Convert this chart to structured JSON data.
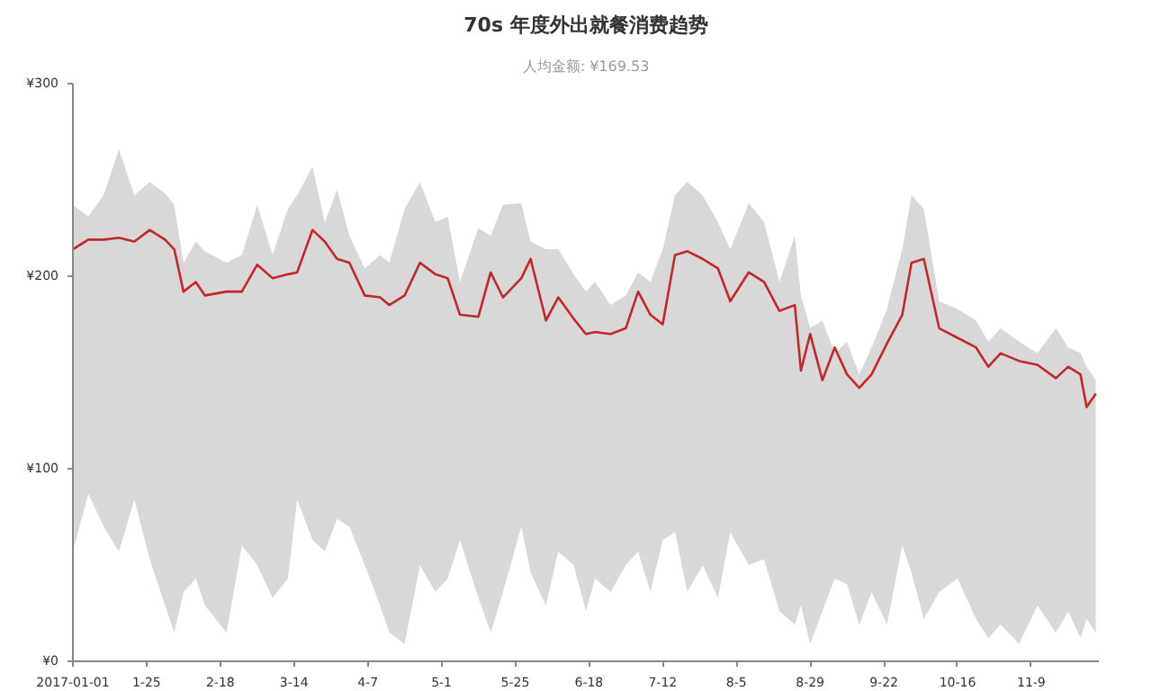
{
  "chart_data": {
    "type": "line",
    "title": "70s 年度外出就餐消费趋势",
    "subtitle": "人均金额: ¥169.53",
    "x": [
      "2017-01-01",
      "2017-01-06",
      "2017-01-11",
      "2017-01-16",
      "2017-01-21",
      "2017-01-26",
      "2017-01-31",
      "2017-02-03",
      "2017-02-06",
      "2017-02-10",
      "2017-02-13",
      "2017-02-20",
      "2017-02-25",
      "2017-03-02",
      "2017-03-07",
      "2017-03-12",
      "2017-03-15",
      "2017-03-20",
      "2017-03-24",
      "2017-03-28",
      "2017-04-01",
      "2017-04-06",
      "2017-04-11",
      "2017-04-14",
      "2017-04-19",
      "2017-04-24",
      "2017-04-29",
      "2017-05-03",
      "2017-05-07",
      "2017-05-13",
      "2017-05-17",
      "2017-05-21",
      "2017-05-27",
      "2017-05-30",
      "2017-06-04",
      "2017-06-08",
      "2017-06-13",
      "2017-06-17",
      "2017-06-20",
      "2017-06-25",
      "2017-06-30",
      "2017-07-04",
      "2017-07-08",
      "2017-07-12",
      "2017-07-16",
      "2017-07-20",
      "2017-07-25",
      "2017-07-30",
      "2017-08-03",
      "2017-08-09",
      "2017-08-14",
      "2017-08-19",
      "2017-08-24",
      "2017-08-26",
      "2017-08-29",
      "2017-09-02",
      "2017-09-06",
      "2017-09-10",
      "2017-09-14",
      "2017-09-18",
      "2017-09-23",
      "2017-09-28",
      "2017-10-01",
      "2017-10-05",
      "2017-10-10",
      "2017-10-16",
      "2017-10-22",
      "2017-10-26",
      "2017-10-30",
      "2017-11-05",
      "2017-11-11",
      "2017-11-17",
      "2017-11-21",
      "2017-11-25",
      "2017-11-27",
      "2017-11-30"
    ],
    "series": [
      {
        "color": "#c0282d",
        "values": [
          214,
          219,
          219,
          220,
          218,
          224,
          219,
          214,
          192,
          197,
          190,
          192,
          192,
          206,
          199,
          201,
          202,
          224,
          218,
          209,
          207,
          190,
          189,
          185,
          190,
          207,
          201,
          199,
          180,
          179,
          202,
          189,
          199,
          209,
          177,
          189,
          178,
          170,
          171,
          170,
          173,
          192,
          180,
          175,
          211,
          213,
          209,
          204,
          187,
          202,
          197,
          182,
          185,
          151,
          170,
          146,
          163,
          149,
          142,
          149,
          165,
          180,
          207,
          209,
          173,
          168,
          163,
          153,
          160,
          156,
          154,
          147,
          153,
          149,
          132,
          139
        ],
        "upper": [
          237,
          231,
          242,
          266,
          242,
          249,
          243,
          237,
          207,
          218,
          213,
          207,
          211,
          237,
          211,
          235,
          242,
          257,
          228,
          245,
          221,
          204,
          211,
          207,
          235,
          249,
          228,
          231,
          197,
          225,
          221,
          237,
          238,
          218,
          214,
          214,
          201,
          192,
          197,
          185,
          190,
          202,
          197,
          214,
          242,
          249,
          242,
          228,
          214,
          238,
          228,
          197,
          221,
          190,
          173,
          177,
          160,
          166,
          149,
          163,
          183,
          214,
          242,
          235,
          187,
          183,
          177,
          166,
          173,
          166,
          160,
          173,
          163,
          160,
          153,
          146
        ],
        "lower": [
          57,
          87,
          70,
          57,
          84,
          53,
          29,
          15,
          36,
          43,
          29,
          15,
          60,
          50,
          33,
          43,
          84,
          63,
          57,
          74,
          70,
          50,
          29,
          15,
          9,
          50,
          36,
          43,
          63,
          33,
          15,
          36,
          70,
          46,
          29,
          57,
          50,
          26,
          43,
          36,
          50,
          57,
          36,
          63,
          67,
          36,
          50,
          33,
          67,
          50,
          53,
          26,
          19,
          29,
          9,
          26,
          43,
          40,
          19,
          36,
          19,
          60,
          46,
          22,
          36,
          43,
          22,
          12,
          19,
          9,
          29,
          15,
          26,
          12,
          22,
          15
        ]
      }
    ],
    "xlim": [
      "2017-01-01",
      "2017-12-01"
    ],
    "xticks": [
      {
        "value": "2017-01-01",
        "label": "2017-01-01"
      },
      {
        "value": "2017-01-25",
        "label": "1-25"
      },
      {
        "value": "2017-02-18",
        "label": "2-18"
      },
      {
        "value": "2017-03-14",
        "label": "3-14"
      },
      {
        "value": "2017-04-07",
        "label": "4-7"
      },
      {
        "value": "2017-05-01",
        "label": "5-1"
      },
      {
        "value": "2017-05-25",
        "label": "5-25"
      },
      {
        "value": "2017-06-18",
        "label": "6-18"
      },
      {
        "value": "2017-07-12",
        "label": "7-12"
      },
      {
        "value": "2017-08-05",
        "label": "8-5"
      },
      {
        "value": "2017-08-29",
        "label": "8-29"
      },
      {
        "value": "2017-09-22",
        "label": "9-22"
      },
      {
        "value": "2017-10-16",
        "label": "10-16"
      },
      {
        "value": "2017-11-09",
        "label": "11-9"
      }
    ],
    "ylim": [
      0,
      300
    ],
    "yticks": [
      {
        "value": 0,
        "label": "¥0"
      },
      {
        "value": 100,
        "label": "¥100"
      },
      {
        "value": 200,
        "label": "¥200"
      },
      {
        "value": 300,
        "label": "¥300"
      }
    ],
    "grid": false,
    "marker": "none",
    "line_style": "solid"
  }
}
